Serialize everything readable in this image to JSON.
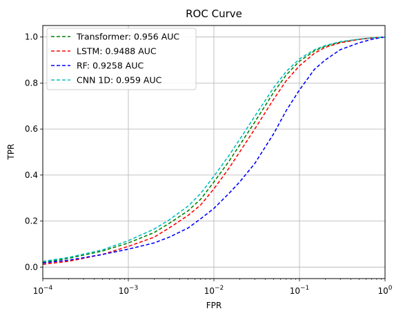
{
  "chart_data": {
    "type": "line",
    "title": "ROC Curve",
    "xlabel": "FPR",
    "ylabel": "TPR",
    "xscale": "log",
    "xlim": [
      0.0001,
      1
    ],
    "ylim": [
      -0.05,
      1.05
    ],
    "x_ticks": [
      {
        "value": 0.0001,
        "base": "10",
        "exp": "−4"
      },
      {
        "value": 0.001,
        "base": "10",
        "exp": "−3"
      },
      {
        "value": 0.01,
        "base": "10",
        "exp": "−2"
      },
      {
        "value": 0.1,
        "base": "10",
        "exp": "−1"
      },
      {
        "value": 1,
        "base": "10",
        "exp": "0"
      }
    ],
    "y_ticks": [
      {
        "value": 0.0,
        "label": "0.0"
      },
      {
        "value": 0.2,
        "label": "0.2"
      },
      {
        "value": 0.4,
        "label": "0.4"
      },
      {
        "value": 0.6,
        "label": "0.6"
      },
      {
        "value": 0.8,
        "label": "0.8"
      },
      {
        "value": 1.0,
        "label": "1.0"
      }
    ],
    "grid": true,
    "legend_position": "top-left",
    "series": [
      {
        "name": "Transformer: 0.956 AUC",
        "color": "#008000",
        "x": [
          0.0001,
          0.0002,
          0.0005,
          0.001,
          0.002,
          0.003,
          0.005,
          0.007,
          0.01,
          0.015,
          0.02,
          0.03,
          0.05,
          0.07,
          0.1,
          0.15,
          0.2,
          0.3,
          0.5,
          0.7,
          1.0
        ],
        "y": [
          0.02,
          0.038,
          0.07,
          0.105,
          0.15,
          0.19,
          0.245,
          0.295,
          0.37,
          0.46,
          0.53,
          0.63,
          0.76,
          0.835,
          0.895,
          0.94,
          0.96,
          0.978,
          0.99,
          0.996,
          1.0
        ]
      },
      {
        "name": "LSTM: 0.9488 AUC",
        "color": "#ff0000",
        "x": [
          0.0001,
          0.0002,
          0.0005,
          0.001,
          0.002,
          0.003,
          0.005,
          0.007,
          0.01,
          0.015,
          0.02,
          0.03,
          0.05,
          0.07,
          0.1,
          0.15,
          0.2,
          0.3,
          0.5,
          0.7,
          1.0
        ],
        "y": [
          0.012,
          0.025,
          0.055,
          0.09,
          0.13,
          0.17,
          0.225,
          0.27,
          0.34,
          0.43,
          0.5,
          0.6,
          0.73,
          0.81,
          0.875,
          0.93,
          0.955,
          0.975,
          0.99,
          0.996,
          1.0
        ]
      },
      {
        "name": "RF: 0.9258 AUC",
        "color": "#0000ff",
        "x": [
          0.0001,
          0.0002,
          0.0005,
          0.001,
          0.002,
          0.003,
          0.005,
          0.007,
          0.01,
          0.015,
          0.02,
          0.03,
          0.05,
          0.07,
          0.1,
          0.15,
          0.2,
          0.3,
          0.5,
          0.7,
          1.0
        ],
        "y": [
          0.018,
          0.03,
          0.055,
          0.078,
          0.105,
          0.13,
          0.17,
          0.21,
          0.255,
          0.32,
          0.37,
          0.45,
          0.58,
          0.68,
          0.77,
          0.86,
          0.9,
          0.945,
          0.975,
          0.99,
          1.0
        ]
      },
      {
        "name": "CNN 1D: 0.959 AUC",
        "color": "#00bfbf",
        "x": [
          0.0001,
          0.0002,
          0.0005,
          0.001,
          0.002,
          0.003,
          0.005,
          0.007,
          0.01,
          0.015,
          0.02,
          0.03,
          0.05,
          0.07,
          0.1,
          0.15,
          0.2,
          0.3,
          0.5,
          0.7,
          1.0
        ],
        "y": [
          0.025,
          0.042,
          0.075,
          0.115,
          0.165,
          0.205,
          0.265,
          0.32,
          0.395,
          0.485,
          0.555,
          0.655,
          0.78,
          0.85,
          0.905,
          0.945,
          0.963,
          0.98,
          0.991,
          0.996,
          1.0
        ]
      }
    ]
  }
}
